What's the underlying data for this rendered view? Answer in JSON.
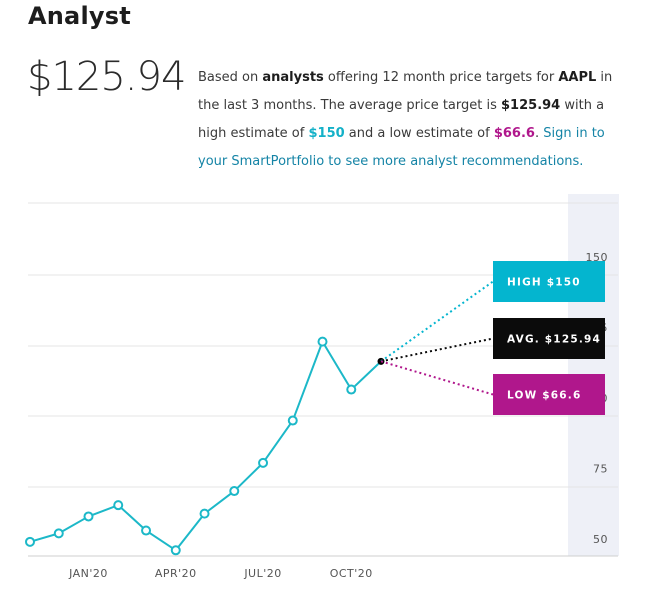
{
  "header": {
    "title": "Analyst"
  },
  "price": {
    "average": "$125.94"
  },
  "summary": {
    "t1": "Based on ",
    "b1": "analysts",
    "t2": " offering 12 month price targets for ",
    "b2": "AAPL",
    "t3": " in the last 3 months. The average price target is ",
    "b3": "$125.94",
    "t4": " with a high estimate of ",
    "high": "$150",
    "t5": " and a low estimate of ",
    "low": "$66.6",
    "t6": ". ",
    "link": "Sign in to your SmartPortfolio to see more analyst recommendations."
  },
  "colors": {
    "line": "#1cb8c8",
    "high": "#04b5cf",
    "avg": "#0b0b0b",
    "low": "#b0178c",
    "grid": "#e4e4e4",
    "band": "#eef0f7"
  },
  "chart_data": {
    "type": "line",
    "x": [
      "2019-11-20",
      "2019-12-20",
      "2020-01-20",
      "2020-02-20",
      "2020-03-20",
      "2020-04-20",
      "2020-05-20",
      "2020-06-20",
      "2020-07-20",
      "2020-08-20",
      "2020-09-20",
      "2020-10-20",
      "2020-11-20"
    ],
    "series": [
      {
        "values": [
          49,
          52,
          58,
          62,
          53,
          46,
          59,
          67,
          77,
          92,
          120,
          103,
          113
        ]
      }
    ],
    "x_ticks": [
      {
        "label": "JAN'20",
        "x": "2020-01-20"
      },
      {
        "label": "APR'20",
        "x": "2020-04-20"
      },
      {
        "label": "JUL'20",
        "x": "2020-07-20"
      },
      {
        "label": "OCT'20",
        "x": "2020-10-20"
      }
    ],
    "y_ticks": [
      50,
      75,
      100,
      125,
      150
    ],
    "ylim": [
      45,
      150
    ],
    "grid": true,
    "targets": [
      {
        "label": "HIGH $150",
        "value": 150
      },
      {
        "label": "AVG. $125.94",
        "value": 125.94
      },
      {
        "label": "LOW $66.6",
        "value": 66.6
      }
    ]
  }
}
